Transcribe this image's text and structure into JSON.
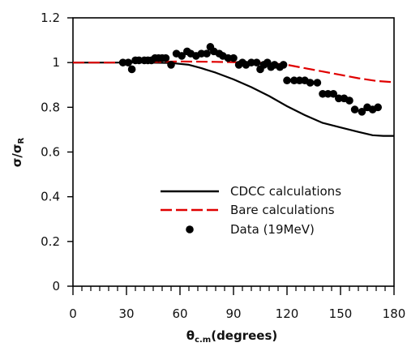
{
  "chart_data": {
    "type": "line",
    "xlabel_main": "θ",
    "xlabel_sub": "c.m",
    "xlabel_rest": "(degrees)",
    "ylabel_main": "σ/σ",
    "ylabel_sub": "R",
    "xlim": [
      0,
      180
    ],
    "ylim": [
      0,
      1.2
    ],
    "x_ticks": [
      0,
      30,
      60,
      90,
      120,
      150,
      180
    ],
    "x_tick_labels": [
      "0",
      "30",
      "60",
      "90",
      "120",
      "150",
      "180"
    ],
    "y_ticks": [
      0,
      0.2,
      0.4,
      0.6,
      0.8,
      1.0,
      1.2
    ],
    "y_tick_labels": [
      "0",
      "0.2",
      "0.4",
      "0.6",
      "0.8",
      "1",
      "1.2"
    ],
    "x_minor_step": 5,
    "grid": false,
    "legend_position": "lower-right",
    "series": [
      {
        "name": "CDCC calculations",
        "kind": "line",
        "style": "solid",
        "color": "#000000",
        "x": [
          0,
          20,
          40,
          55,
          65,
          72,
          80,
          90,
          100,
          110,
          120,
          130,
          140,
          150,
          160,
          168,
          174,
          180
        ],
        "y": [
          1.0,
          1.0,
          1.0,
          0.998,
          0.99,
          0.975,
          0.955,
          0.925,
          0.89,
          0.85,
          0.805,
          0.765,
          0.73,
          0.71,
          0.69,
          0.675,
          0.672,
          0.672
        ]
      },
      {
        "name": "Bare calculations",
        "kind": "line",
        "style": "dashed",
        "color": "#e00000",
        "x": [
          0,
          20,
          40,
          60,
          80,
          100,
          110,
          120,
          130,
          140,
          150,
          160,
          170,
          180
        ],
        "y": [
          1.0,
          1.0,
          1.002,
          1.005,
          1.003,
          1.0,
          0.998,
          0.99,
          0.975,
          0.96,
          0.945,
          0.93,
          0.918,
          0.912
        ]
      },
      {
        "name": "Data (19MeV)",
        "kind": "scatter",
        "color": "#000000",
        "x": [
          28,
          31,
          33,
          35,
          37,
          40,
          42,
          44,
          46,
          48,
          50,
          52,
          55,
          58,
          61,
          64,
          66,
          69,
          72,
          75,
          77,
          79,
          82,
          84,
          87,
          90,
          93,
          95,
          97,
          100,
          103,
          105,
          107,
          109,
          111,
          113,
          116,
          118,
          120,
          124,
          127,
          130,
          133,
          137,
          140,
          143,
          146,
          149,
          152,
          155,
          158,
          162,
          165,
          168,
          171
        ],
        "y": [
          1.0,
          1.0,
          0.97,
          1.01,
          1.01,
          1.01,
          1.01,
          1.01,
          1.02,
          1.02,
          1.02,
          1.02,
          0.99,
          1.04,
          1.03,
          1.05,
          1.04,
          1.03,
          1.04,
          1.04,
          1.07,
          1.05,
          1.04,
          1.03,
          1.02,
          1.02,
          0.99,
          1.0,
          0.99,
          1.0,
          1.0,
          0.97,
          0.99,
          1.0,
          0.98,
          0.99,
          0.98,
          0.99,
          0.92,
          0.92,
          0.92,
          0.92,
          0.91,
          0.91,
          0.86,
          0.86,
          0.86,
          0.84,
          0.84,
          0.83,
          0.79,
          0.78,
          0.8,
          0.79,
          0.8
        ]
      }
    ]
  }
}
